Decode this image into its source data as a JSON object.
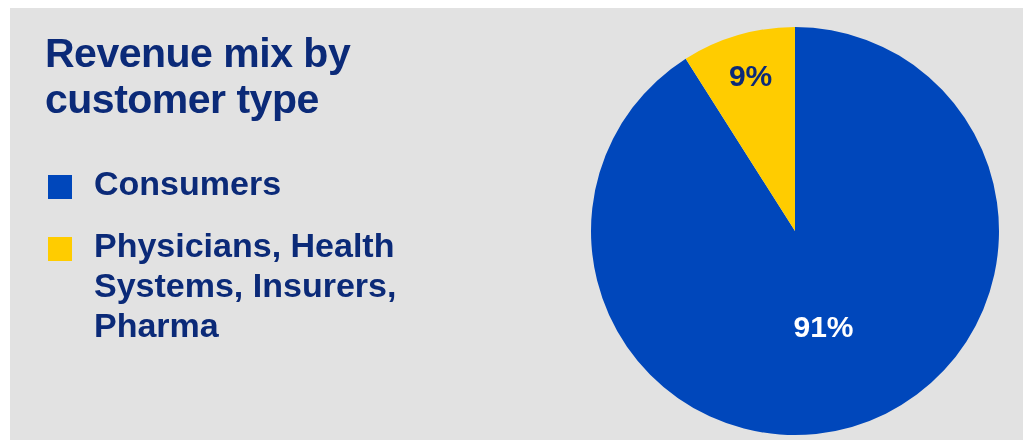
{
  "chart_data": {
    "type": "pie",
    "title": "Revenue mix by customer type",
    "categories": [
      "Consumers",
      "Physicians, Health Systems, Insurers, Pharma"
    ],
    "values": [
      91,
      9
    ],
    "colors": [
      "#0047bb",
      "#ffcc00"
    ],
    "value_labels": [
      "91%",
      "9%"
    ],
    "legend": "left"
  }
}
